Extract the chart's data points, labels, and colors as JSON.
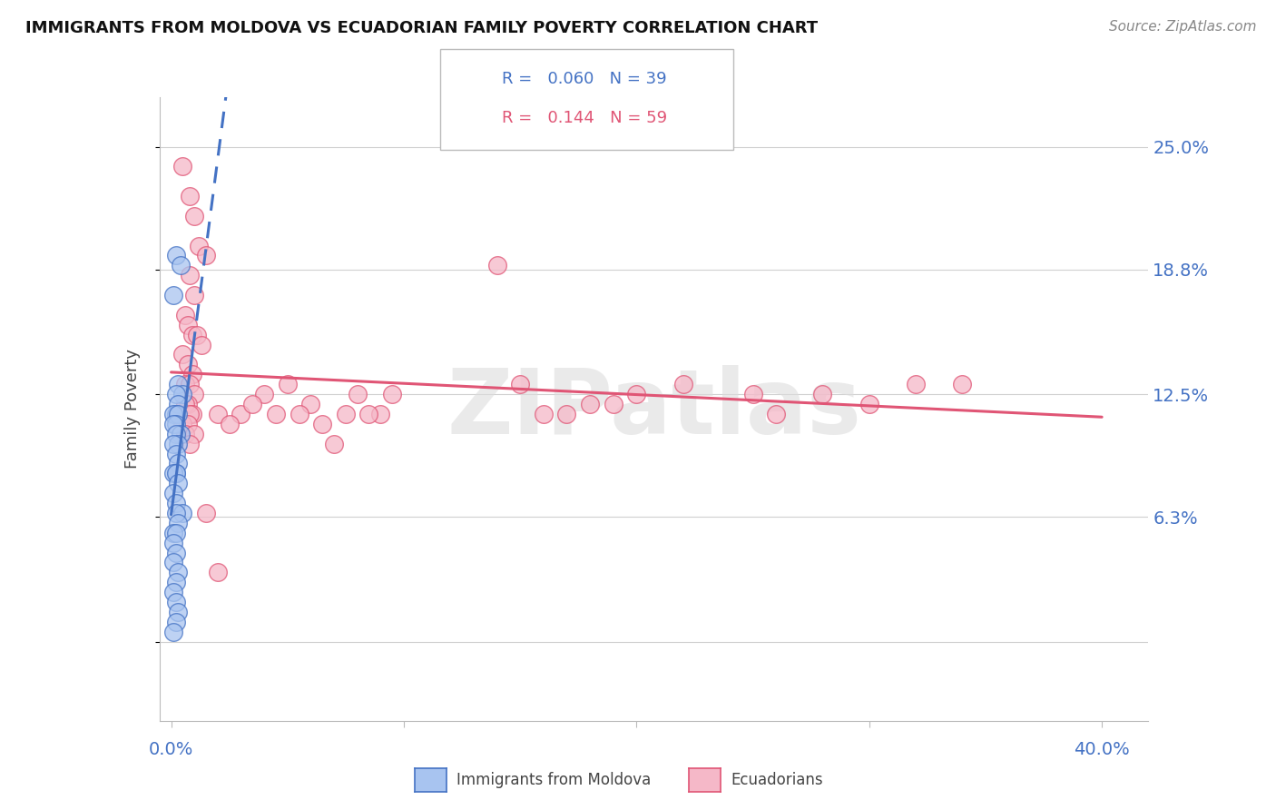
{
  "title": "IMMIGRANTS FROM MOLDOVA VS ECUADORIAN FAMILY POVERTY CORRELATION CHART",
  "source": "Source: ZipAtlas.com",
  "ylabel": "Family Poverty",
  "yticks": [
    0.0,
    0.063,
    0.125,
    0.188,
    0.25
  ],
  "ytick_labels": [
    "",
    "6.3%",
    "12.5%",
    "18.8%",
    "25.0%"
  ],
  "xlim": [
    -0.005,
    0.42
  ],
  "ylim": [
    -0.04,
    0.275
  ],
  "color_moldova": "#a8c4f0",
  "color_ecuador": "#f5b8c8",
  "line_moldova": "#4472c4",
  "line_ecuador": "#e05575",
  "background_color": "#ffffff",
  "watermark": "ZIPatlas",
  "moldova_x": [
    0.002,
    0.004,
    0.001,
    0.003,
    0.005,
    0.002,
    0.003,
    0.002,
    0.001,
    0.003,
    0.002,
    0.001,
    0.004,
    0.002,
    0.003,
    0.001,
    0.002,
    0.003,
    0.002,
    0.001,
    0.002,
    0.003,
    0.001,
    0.002,
    0.005,
    0.002,
    0.003,
    0.001,
    0.002,
    0.001,
    0.002,
    0.001,
    0.003,
    0.002,
    0.001,
    0.002,
    0.003,
    0.002,
    0.001
  ],
  "moldova_y": [
    0.195,
    0.19,
    0.175,
    0.13,
    0.125,
    0.125,
    0.12,
    0.115,
    0.115,
    0.115,
    0.11,
    0.11,
    0.105,
    0.105,
    0.1,
    0.1,
    0.095,
    0.09,
    0.085,
    0.085,
    0.085,
    0.08,
    0.075,
    0.07,
    0.065,
    0.065,
    0.06,
    0.055,
    0.055,
    0.05,
    0.045,
    0.04,
    0.035,
    0.03,
    0.025,
    0.02,
    0.015,
    0.01,
    0.005
  ],
  "ecuador_x": [
    0.005,
    0.008,
    0.01,
    0.012,
    0.015,
    0.008,
    0.01,
    0.006,
    0.007,
    0.009,
    0.011,
    0.013,
    0.005,
    0.007,
    0.009,
    0.006,
    0.008,
    0.01,
    0.007,
    0.006,
    0.009,
    0.008,
    0.005,
    0.007,
    0.006,
    0.01,
    0.008,
    0.05,
    0.06,
    0.08,
    0.09,
    0.04,
    0.07,
    0.03,
    0.02,
    0.025,
    0.035,
    0.045,
    0.055,
    0.065,
    0.075,
    0.085,
    0.095,
    0.015,
    0.02,
    0.15,
    0.2,
    0.18,
    0.16,
    0.22,
    0.25,
    0.28,
    0.3,
    0.32,
    0.34,
    0.26,
    0.19,
    0.17,
    0.14
  ],
  "ecuador_y": [
    0.24,
    0.225,
    0.215,
    0.2,
    0.195,
    0.185,
    0.175,
    0.165,
    0.16,
    0.155,
    0.155,
    0.15,
    0.145,
    0.14,
    0.135,
    0.13,
    0.13,
    0.125,
    0.12,
    0.12,
    0.115,
    0.115,
    0.11,
    0.11,
    0.105,
    0.105,
    0.1,
    0.13,
    0.12,
    0.125,
    0.115,
    0.125,
    0.1,
    0.115,
    0.115,
    0.11,
    0.12,
    0.115,
    0.115,
    0.11,
    0.115,
    0.115,
    0.125,
    0.065,
    0.035,
    0.13,
    0.125,
    0.12,
    0.115,
    0.13,
    0.125,
    0.125,
    0.12,
    0.13,
    0.13,
    0.115,
    0.12,
    0.115,
    0.19
  ]
}
